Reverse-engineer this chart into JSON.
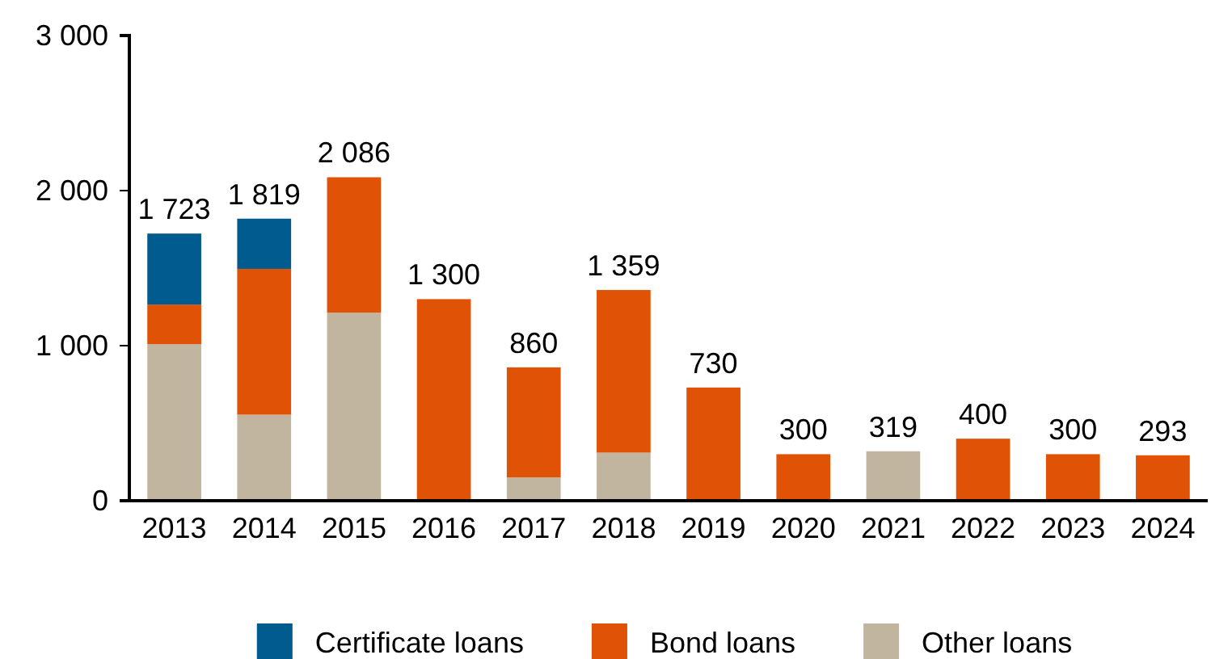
{
  "chart_data": {
    "type": "bar",
    "stacked": true,
    "categories": [
      "2013",
      "2014",
      "2015",
      "2016",
      "2017",
      "2018",
      "2019",
      "2020",
      "2021",
      "2022",
      "2023",
      "2024"
    ],
    "series": [
      {
        "name": "Other loans",
        "color": "#c1b5a0",
        "values": [
          1010,
          555,
          1213,
          0,
          150,
          310,
          0,
          0,
          319,
          0,
          0,
          0
        ]
      },
      {
        "name": "Bond loans",
        "color": "#e05206",
        "values": [
          255,
          940,
          873,
          1300,
          710,
          1049,
          730,
          300,
          0,
          400,
          300,
          293
        ]
      },
      {
        "name": "Certificate loans",
        "color": "#005b8e",
        "values": [
          458,
          324,
          0,
          0,
          0,
          0,
          0,
          0,
          0,
          0,
          0,
          0
        ]
      }
    ],
    "totals": [
      "1 723",
      "1 819",
      "2 086",
      "1 300",
      "860",
      "1 359",
      "730",
      "300",
      "319",
      "400",
      "300",
      "293"
    ],
    "ylim": [
      0,
      3000
    ],
    "yticks": [
      {
        "value": 0,
        "label": "0"
      },
      {
        "value": 1000,
        "label": "1 000"
      },
      {
        "value": 2000,
        "label": "2 000"
      },
      {
        "value": 3000,
        "label": "3 000"
      }
    ],
    "grid": false,
    "legend": "bottom"
  }
}
